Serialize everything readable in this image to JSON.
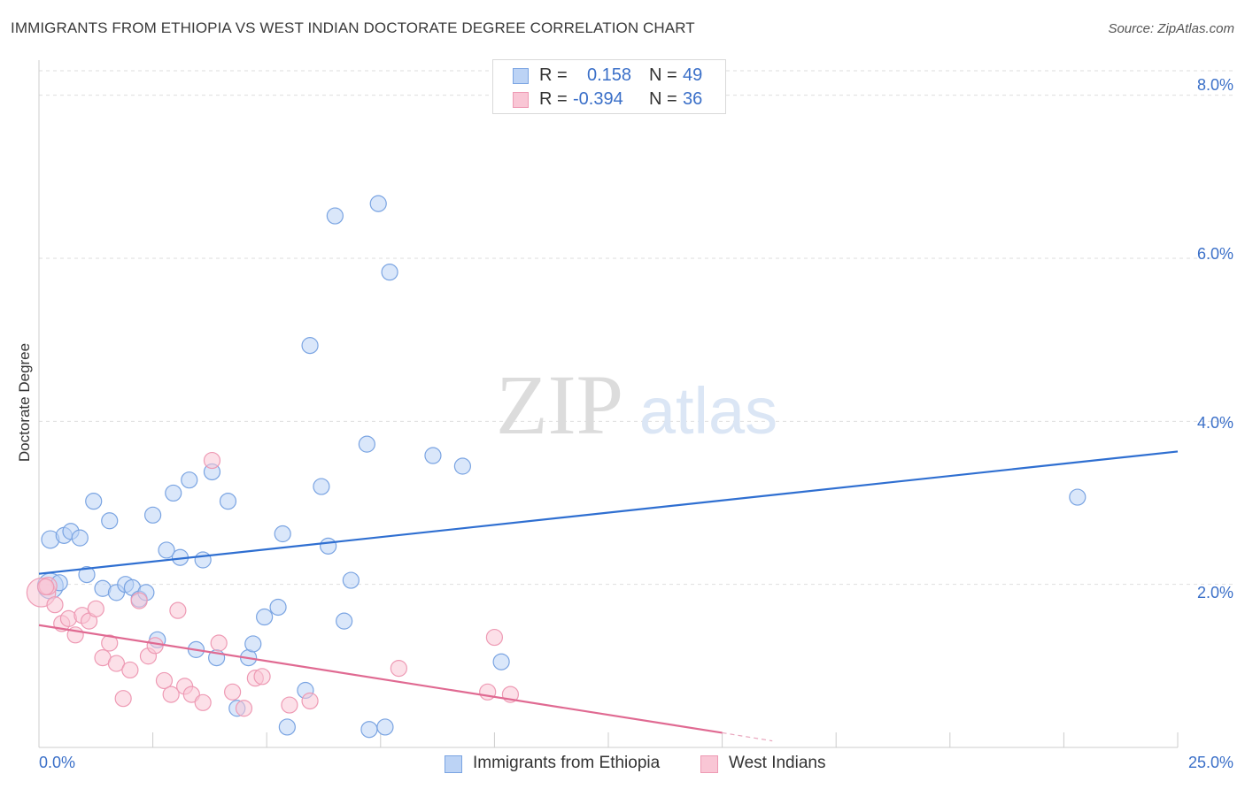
{
  "header": {
    "title": "IMMIGRANTS FROM ETHIOPIA VS WEST INDIAN DOCTORATE DEGREE CORRELATION CHART",
    "source": "Source: ZipAtlas.com"
  },
  "watermark": {
    "zip": "ZIP",
    "atlas": "atlas"
  },
  "legend": {
    "rows": [
      {
        "r_label": "R =",
        "r_value": "0.158",
        "n_label": "N =",
        "n_value": "49",
        "fill": "#bcd3f5",
        "stroke": "#7aa4e2"
      },
      {
        "r_label": "R =",
        "r_value": "-0.394",
        "n_label": "N =",
        "n_value": "36",
        "fill": "#f9c6d5",
        "stroke": "#ee9ab4"
      }
    ]
  },
  "axes": {
    "y_title": "Doctorate Degree",
    "x_min_label": "0.0%",
    "x_max_label": "25.0%",
    "y_tick_labels": [
      "2.0%",
      "4.0%",
      "6.0%",
      "8.0%"
    ]
  },
  "bottom_legend": [
    {
      "label": "Immigrants from Ethiopia",
      "fill": "#bcd3f5",
      "stroke": "#7aa4e2"
    },
    {
      "label": "West Indians",
      "fill": "#f9c6d5",
      "stroke": "#ee9ab4"
    }
  ],
  "chart_data": {
    "type": "scatter",
    "title": "IMMIGRANTS FROM ETHIOPIA VS WEST INDIAN DOCTORATE DEGREE CORRELATION CHART",
    "xlabel": "",
    "ylabel": "Doctorate Degree",
    "xlim": [
      0,
      25
    ],
    "ylim": [
      0,
      8.3
    ],
    "yticks": [
      2,
      4,
      6,
      8
    ],
    "grid": true,
    "series": [
      {
        "name": "Immigrants from Ethiopia",
        "color": "#7aa4e2",
        "fill": "#bcd3f5",
        "trend": {
          "x": [
            0,
            25
          ],
          "y": [
            2.13,
            3.63
          ],
          "color": "#2f6fd1"
        },
        "points": [
          [
            0.25,
            1.98,
            1.6
          ],
          [
            0.25,
            2.55,
            1.1
          ],
          [
            0.45,
            2.02,
            1
          ],
          [
            0.55,
            2.6,
            1
          ],
          [
            0.7,
            2.65,
            1
          ],
          [
            0.9,
            2.57,
            1
          ],
          [
            1.05,
            2.12,
            1
          ],
          [
            1.2,
            3.02,
            1
          ],
          [
            1.4,
            1.95,
            1
          ],
          [
            1.55,
            2.78,
            1
          ],
          [
            1.7,
            1.9,
            1
          ],
          [
            1.9,
            2.0,
            1
          ],
          [
            2.05,
            1.96,
            1
          ],
          [
            2.2,
            1.82,
            1
          ],
          [
            2.35,
            1.9,
            1
          ],
          [
            2.5,
            2.85,
            1
          ],
          [
            2.6,
            1.32,
            1
          ],
          [
            2.8,
            2.42,
            1
          ],
          [
            2.95,
            3.12,
            1
          ],
          [
            3.1,
            2.33,
            1
          ],
          [
            3.3,
            3.28,
            1
          ],
          [
            3.45,
            1.2,
            1
          ],
          [
            3.6,
            2.3,
            1
          ],
          [
            3.8,
            3.38,
            1
          ],
          [
            3.9,
            1.1,
            1
          ],
          [
            4.15,
            3.02,
            1
          ],
          [
            4.35,
            0.48,
            1
          ],
          [
            4.6,
            1.1,
            1
          ],
          [
            4.7,
            1.27,
            1
          ],
          [
            4.95,
            1.6,
            1
          ],
          [
            5.25,
            1.72,
            1
          ],
          [
            5.35,
            2.62,
            1
          ],
          [
            5.45,
            0.25,
            1
          ],
          [
            5.85,
            0.7,
            1
          ],
          [
            5.95,
            4.93,
            1
          ],
          [
            6.2,
            3.2,
            1
          ],
          [
            6.35,
            2.47,
            1
          ],
          [
            6.5,
            6.52,
            1
          ],
          [
            6.7,
            1.55,
            1
          ],
          [
            6.85,
            2.05,
            1
          ],
          [
            7.2,
            3.72,
            1
          ],
          [
            7.25,
            0.22,
            1
          ],
          [
            7.45,
            6.67,
            1
          ],
          [
            7.6,
            0.25,
            1
          ],
          [
            7.7,
            5.83,
            1
          ],
          [
            8.65,
            3.58,
            1
          ],
          [
            9.3,
            3.45,
            1
          ],
          [
            10.15,
            1.05,
            1
          ],
          [
            22.8,
            3.07,
            1
          ]
        ]
      },
      {
        "name": "West Indians",
        "color": "#ee9ab4",
        "fill": "#f9c6d5",
        "trend": {
          "x": [
            0,
            15
          ],
          "y": [
            1.5,
            0.18
          ],
          "color": "#e06a92",
          "dashed_extension_x": [
            15,
            16.1
          ],
          "dashed_extension_y": [
            0.18,
            0.08
          ]
        },
        "points": [
          [
            0.05,
            1.9,
            1.8
          ],
          [
            0.2,
            1.98,
            1.1
          ],
          [
            0.35,
            1.75,
            1
          ],
          [
            0.5,
            1.52,
            1
          ],
          [
            0.65,
            1.58,
            1
          ],
          [
            0.8,
            1.38,
            1
          ],
          [
            0.95,
            1.62,
            1
          ],
          [
            1.1,
            1.55,
            1
          ],
          [
            1.25,
            1.7,
            1
          ],
          [
            1.4,
            1.1,
            1
          ],
          [
            1.55,
            1.28,
            1
          ],
          [
            1.7,
            1.03,
            1
          ],
          [
            1.85,
            0.6,
            1
          ],
          [
            2.0,
            0.95,
            1
          ],
          [
            2.2,
            1.8,
            1
          ],
          [
            2.4,
            1.12,
            1
          ],
          [
            2.55,
            1.25,
            1
          ],
          [
            2.75,
            0.82,
            1
          ],
          [
            2.9,
            0.65,
            1
          ],
          [
            3.05,
            1.68,
            1
          ],
          [
            3.2,
            0.75,
            1
          ],
          [
            3.35,
            0.65,
            1
          ],
          [
            3.6,
            0.55,
            1
          ],
          [
            3.8,
            3.52,
            1
          ],
          [
            3.95,
            1.28,
            1
          ],
          [
            4.25,
            0.68,
            1
          ],
          [
            4.5,
            0.48,
            1
          ],
          [
            4.75,
            0.85,
            1
          ],
          [
            4.9,
            0.87,
            1
          ],
          [
            5.5,
            0.52,
            1
          ],
          [
            5.95,
            0.57,
            1
          ],
          [
            7.9,
            0.97,
            1
          ],
          [
            9.85,
            0.68,
            1
          ],
          [
            10.0,
            1.35,
            1
          ],
          [
            10.35,
            0.65,
            1
          ],
          [
            0.15,
            1.97,
            1
          ]
        ]
      }
    ]
  }
}
